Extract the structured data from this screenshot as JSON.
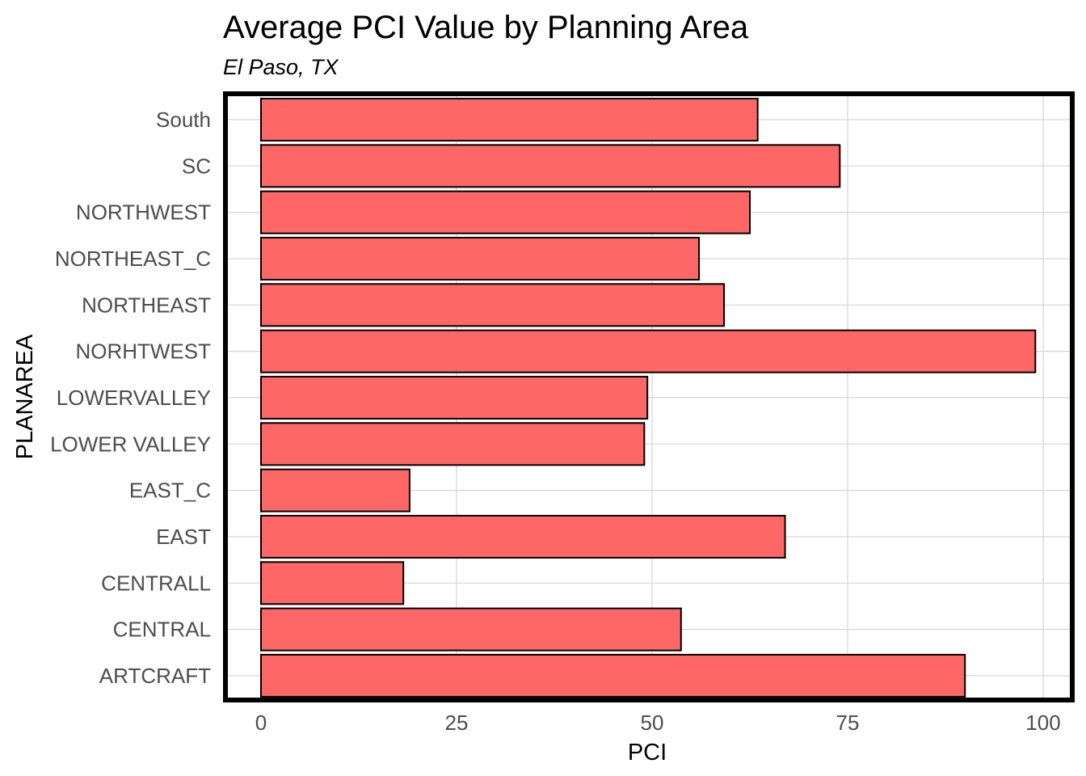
{
  "chart_data": {
    "type": "bar",
    "orientation": "horizontal",
    "title": "Average PCI Value by Planning Area",
    "subtitle": "El Paso, TX",
    "xlabel": "PCI",
    "ylabel": "PLANAREA",
    "categories": [
      "South",
      "SC",
      "NORTHWEST",
      "NORTHEAST_C",
      "NORTHEAST",
      "NORHTWEST",
      "LOWERVALLEY",
      "LOWER VALLEY",
      "EAST_C",
      "EAST",
      "CENTRALL",
      "CENTRAL",
      "ARTCRAFT"
    ],
    "values": [
      63.5,
      74,
      62.5,
      56,
      59.2,
      99,
      49.4,
      49,
      19,
      67,
      18.2,
      53.7,
      90
    ],
    "xlim": [
      0,
      100
    ],
    "xticks": [
      0,
      25,
      50,
      75,
      100
    ],
    "grid": true,
    "legend": "none",
    "bar_color": "#FF6666",
    "bar_outline_color": "#000000",
    "panel_border_color": "#000000"
  }
}
